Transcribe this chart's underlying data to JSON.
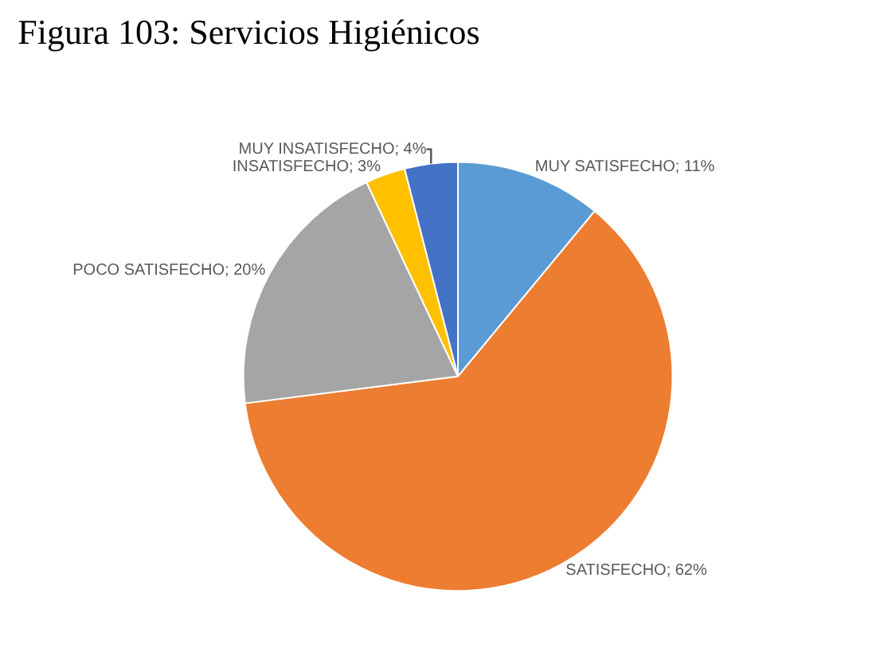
{
  "chart_data": {
    "type": "pie",
    "title": "Figura 103: Servicios Higiénicos",
    "categories": [
      "MUY SATISFECHO",
      "SATISFECHO",
      "POCO SATISFECHO",
      "INSATISFECHO",
      "MUY INSATISFECHO"
    ],
    "values": [
      11,
      62,
      20,
      3,
      4
    ],
    "colors": [
      "#5b9bd5",
      "#ed7d31",
      "#a5a5a5",
      "#ffc000",
      "#4472c4"
    ],
    "value_labels": [
      "11%",
      "62%",
      "20%",
      "3%",
      "4%"
    ],
    "legend": false
  }
}
